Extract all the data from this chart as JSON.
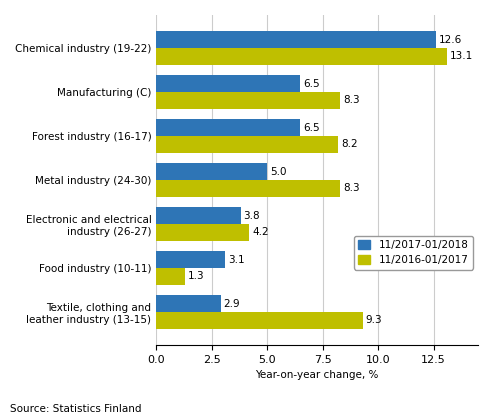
{
  "categories": [
    "Textile, clothing and\nleather industry (13-15)",
    "Food industry (10-11)",
    "Electronic and electrical\nindustry (26-27)",
    "Metal industry (24-30)",
    "Forest industry (16-17)",
    "Manufacturing (C)",
    "Chemical industry (19-22)"
  ],
  "series1_label": "11/2017-01/2018",
  "series2_label": "11/2016-01/2017",
  "series1_values": [
    2.9,
    3.1,
    3.8,
    5.0,
    6.5,
    6.5,
    12.6
  ],
  "series2_values": [
    9.3,
    1.3,
    4.2,
    8.3,
    8.2,
    8.3,
    13.1
  ],
  "series1_color": "#2E75B6",
  "series2_color": "#BFBF00",
  "xlabel": "Year-on-year change, %",
  "xlim": [
    0,
    14.5
  ],
  "xticks": [
    0.0,
    2.5,
    5.0,
    7.5,
    10.0,
    12.5
  ],
  "xtick_labels": [
    "0.0",
    "2.5",
    "5.0",
    "7.5",
    "10.0",
    "12.5"
  ],
  "bar_height": 0.38,
  "source_text": "Source: Statistics Finland",
  "background_color": "#ffffff",
  "grid_color": "#cccccc",
  "label_fontsize": 7.5,
  "tick_fontsize": 8.0,
  "value_fontsize": 7.5
}
